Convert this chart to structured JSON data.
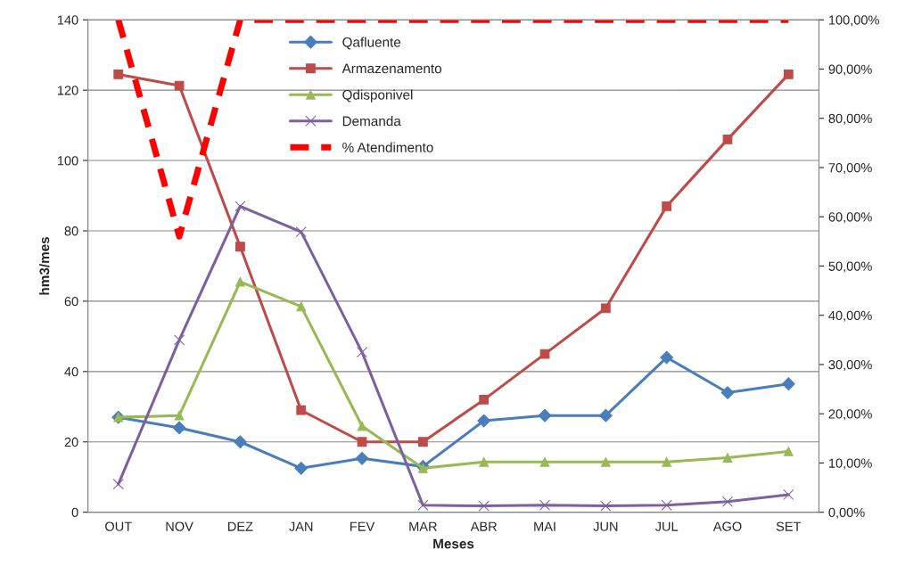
{
  "chart_data": {
    "type": "line",
    "xlabel": "Meses",
    "ylabel": "hm3/mes",
    "categories": [
      "OUT",
      "NOV",
      "DEZ",
      "JAN",
      "FEV",
      "MAR",
      "ABR",
      "MAI",
      "JUN",
      "JUL",
      "AGO",
      "SET"
    ],
    "series": [
      {
        "name": "Qafluente",
        "color": "#4a7ebb",
        "marker": "diamond",
        "values": [
          27,
          24,
          20,
          12.5,
          15.3,
          13,
          26,
          27.5,
          27.5,
          44,
          34,
          36.5
        ]
      },
      {
        "name": "Armazenamento",
        "color": "#be4b48",
        "marker": "square",
        "values": [
          124.5,
          121.3,
          75.5,
          29,
          20,
          20,
          32,
          45,
          58,
          87,
          106,
          124.5
        ]
      },
      {
        "name": "Qdisponivel",
        "color": "#98b954",
        "marker": "triangle",
        "values": [
          27,
          27.5,
          65.5,
          58.5,
          24.5,
          12.5,
          14.3,
          14.3,
          14.3,
          14.3,
          15.5,
          17.3
        ]
      },
      {
        "name": "Demanda",
        "color": "#7d60a0",
        "marker": "cross",
        "values": [
          8,
          49,
          87,
          79.7,
          45.5,
          2,
          1.8,
          2,
          1.8,
          2,
          3,
          5
        ]
      },
      {
        "name": "% Atendimento",
        "color": "#ff0000",
        "marker": "none",
        "line_style": "dashed",
        "axis": "y2",
        "values": [
          100,
          56,
          100,
          100,
          100,
          100,
          100,
          100,
          100,
          100,
          100,
          100
        ]
      }
    ],
    "ylim": [
      0,
      140
    ],
    "yticks": [
      0,
      20,
      40,
      60,
      80,
      100,
      120,
      140
    ],
    "y2lim": [
      0,
      100
    ],
    "y2ticks": [
      {
        "value": 0,
        "label": "0,00%"
      },
      {
        "value": 10,
        "label": "10,00%"
      },
      {
        "value": 20,
        "label": "20,00%"
      },
      {
        "value": 30,
        "label": "30,00%"
      },
      {
        "value": 40,
        "label": "40,00%"
      },
      {
        "value": 50,
        "label": "50,00%"
      },
      {
        "value": 60,
        "label": "60,00%"
      },
      {
        "value": 70,
        "label": "70,00%"
      },
      {
        "value": 80,
        "label": "80,00%"
      },
      {
        "value": 90,
        "label": "90,00%"
      },
      {
        "value": 100,
        "label": "100,00%"
      }
    ],
    "grid": "y",
    "legend": "top"
  }
}
